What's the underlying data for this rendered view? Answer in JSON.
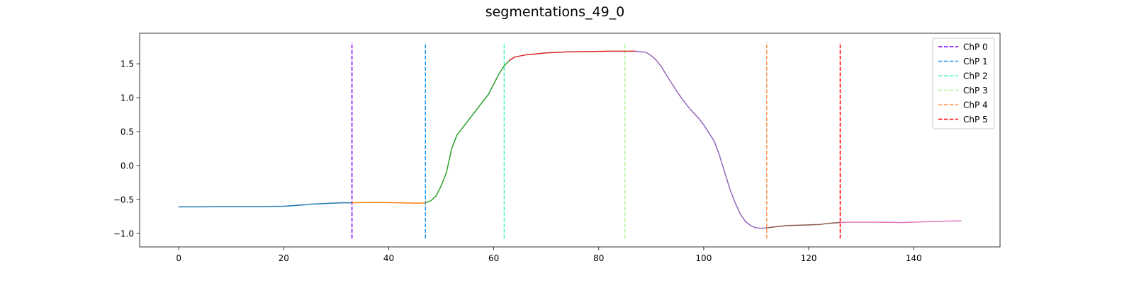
{
  "chart_data": {
    "type": "line",
    "title": "segmentations_49_0",
    "xlabel": "",
    "ylabel": "",
    "xlim": [
      -7.45,
      156.45
    ],
    "ylim": [
      -1.2,
      1.95
    ],
    "x_ticks": [
      0,
      20,
      40,
      60,
      80,
      100,
      120,
      140
    ],
    "y_ticks": [
      -1.0,
      -0.5,
      0.0,
      0.5,
      1.0,
      1.5
    ],
    "y_tick_labels": [
      "−1.0",
      "−0.5",
      "0.0",
      "0.5",
      "1.0",
      "1.5"
    ],
    "grid": false,
    "legend_position": "top-right",
    "segments": [
      {
        "color": "#1f77b4",
        "points": [
          [
            0,
            -0.61
          ],
          [
            4,
            -0.61
          ],
          [
            8,
            -0.605
          ],
          [
            12,
            -0.605
          ],
          [
            16,
            -0.605
          ],
          [
            20,
            -0.6
          ],
          [
            22,
            -0.59
          ],
          [
            24,
            -0.58
          ],
          [
            25,
            -0.57
          ],
          [
            28,
            -0.56
          ],
          [
            31,
            -0.55
          ],
          [
            33,
            -0.55
          ]
        ]
      },
      {
        "color": "#ff7f0e",
        "points": [
          [
            33,
            -0.55
          ],
          [
            36,
            -0.545
          ],
          [
            39,
            -0.545
          ],
          [
            42,
            -0.55
          ],
          [
            45,
            -0.555
          ],
          [
            46,
            -0.555
          ],
          [
            47,
            -0.55
          ]
        ]
      },
      {
        "color": "#2ca02c",
        "points": [
          [
            47,
            -0.55
          ],
          [
            48,
            -0.52
          ],
          [
            49,
            -0.45
          ],
          [
            50,
            -0.3
          ],
          [
            51,
            -0.1
          ],
          [
            52,
            0.25
          ],
          [
            53,
            0.45
          ],
          [
            54,
            0.55
          ],
          [
            55,
            0.65
          ],
          [
            56,
            0.75
          ],
          [
            57,
            0.85
          ],
          [
            58,
            0.95
          ],
          [
            59,
            1.05
          ],
          [
            60,
            1.2
          ],
          [
            61,
            1.35
          ],
          [
            62,
            1.47
          ],
          [
            63,
            1.55
          ]
        ]
      },
      {
        "color": "#d62728",
        "points": [
          [
            63,
            1.55
          ],
          [
            64,
            1.6
          ],
          [
            66,
            1.63
          ],
          [
            68,
            1.645
          ],
          [
            70,
            1.66
          ],
          [
            74,
            1.675
          ],
          [
            78,
            1.68
          ],
          [
            82,
            1.685
          ],
          [
            85,
            1.685
          ],
          [
            87,
            1.685
          ]
        ]
      },
      {
        "color": "#9467bd",
        "points": [
          [
            87,
            1.685
          ],
          [
            89,
            1.67
          ],
          [
            90,
            1.62
          ],
          [
            91,
            1.55
          ],
          [
            92,
            1.45
          ],
          [
            93,
            1.32
          ],
          [
            94,
            1.2
          ],
          [
            95,
            1.08
          ],
          [
            96,
            0.97
          ],
          [
            97,
            0.87
          ],
          [
            98,
            0.78
          ],
          [
            99,
            0.7
          ],
          [
            100,
            0.6
          ],
          [
            101,
            0.48
          ],
          [
            102,
            0.36
          ],
          [
            103,
            0.15
          ],
          [
            104,
            -0.1
          ],
          [
            105,
            -0.35
          ],
          [
            106,
            -0.55
          ],
          [
            107,
            -0.72
          ],
          [
            108,
            -0.83
          ],
          [
            109,
            -0.89
          ],
          [
            110,
            -0.92
          ],
          [
            111,
            -0.925
          ],
          [
            112,
            -0.92
          ]
        ]
      },
      {
        "color": "#8c564b",
        "points": [
          [
            112,
            -0.92
          ],
          [
            114,
            -0.9
          ],
          [
            116,
            -0.885
          ],
          [
            118,
            -0.88
          ],
          [
            120,
            -0.875
          ],
          [
            122,
            -0.87
          ],
          [
            124,
            -0.85
          ],
          [
            126,
            -0.84
          ]
        ]
      },
      {
        "color": "#e377c2",
        "points": [
          [
            126,
            -0.84
          ],
          [
            128,
            -0.835
          ],
          [
            132,
            -0.835
          ],
          [
            138,
            -0.84
          ],
          [
            142,
            -0.83
          ],
          [
            146,
            -0.82
          ],
          [
            149,
            -0.815
          ]
        ]
      }
    ],
    "changepoints": [
      {
        "name": "ChP 0",
        "x": 33,
        "color": "#8000ff"
      },
      {
        "name": "ChP 1",
        "x": 47,
        "color": "#1996f3"
      },
      {
        "name": "ChP 2",
        "x": 62,
        "color": "#4df3ce"
      },
      {
        "name": "ChP 3",
        "x": 85,
        "color": "#b2f396"
      },
      {
        "name": "ChP 4",
        "x": 112,
        "color": "#ff964f"
      },
      {
        "name": "ChP 5",
        "x": 126,
        "color": "#ff0000"
      }
    ]
  }
}
